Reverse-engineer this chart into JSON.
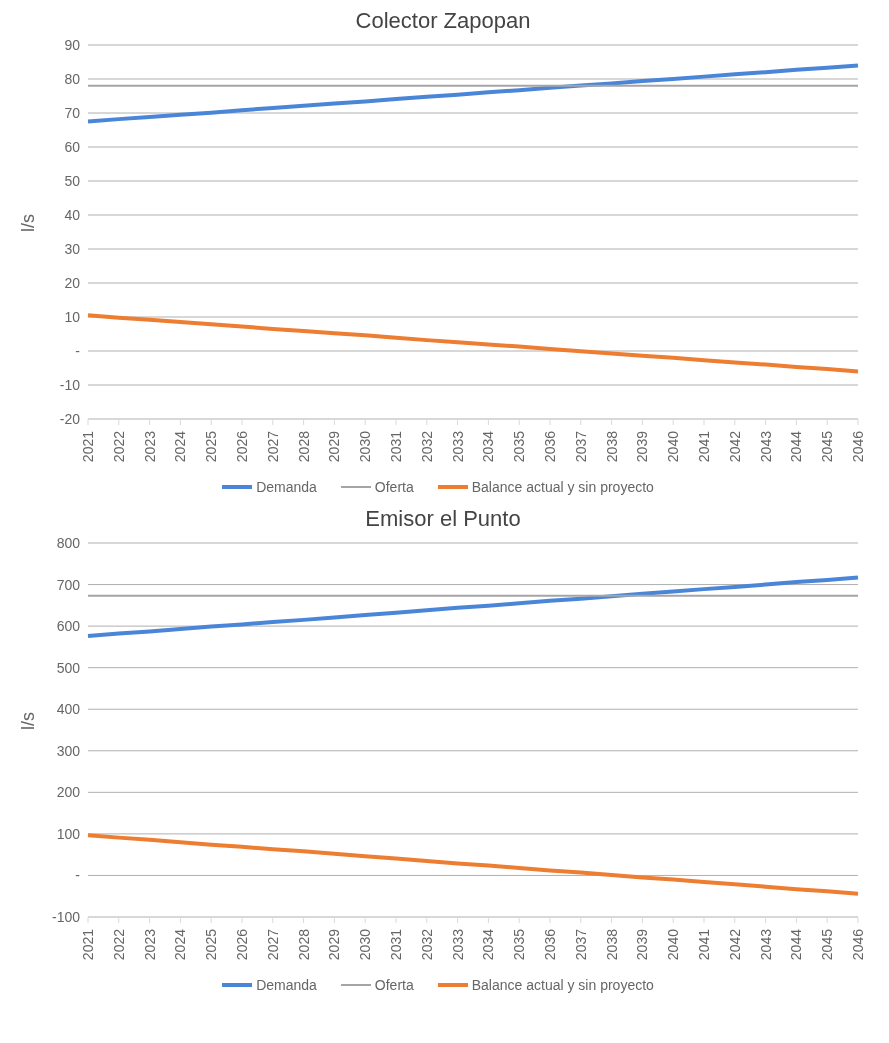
{
  "chart_data": [
    {
      "type": "line",
      "title": "Colector Zapopan",
      "ylabel": "l/s",
      "categories": [
        "2021",
        "2022",
        "2023",
        "2024",
        "2025",
        "2026",
        "2027",
        "2028",
        "2029",
        "2030",
        "2031",
        "2032",
        "2033",
        "2034",
        "2035",
        "2036",
        "2037",
        "2038",
        "2039",
        "2040",
        "2041",
        "2042",
        "2043",
        "2044",
        "2045",
        "2046"
      ],
      "series": [
        {
          "name": "Demanda",
          "color": "#4a86d8",
          "values": [
            67.5,
            68.2,
            68.8,
            69.5,
            70.1,
            70.8,
            71.5,
            72.1,
            72.8,
            73.4,
            74.1,
            74.8,
            75.4,
            76.1,
            76.7,
            77.4,
            78.1,
            78.7,
            79.4,
            80.0,
            80.7,
            81.4,
            82.0,
            82.7,
            83.3,
            84.0
          ]
        },
        {
          "name": "Oferta",
          "color": "#a5a5a5",
          "values": [
            78,
            78,
            78,
            78,
            78,
            78,
            78,
            78,
            78,
            78,
            78,
            78,
            78,
            78,
            78,
            78,
            78,
            78,
            78,
            78,
            78,
            78,
            78,
            78,
            78,
            78
          ]
        },
        {
          "name": "Balance actual y sin proyecto",
          "color": "#ed7d31",
          "values": [
            10.5,
            9.8,
            9.2,
            8.5,
            7.9,
            7.2,
            6.5,
            5.9,
            5.2,
            4.6,
            3.9,
            3.2,
            2.6,
            1.9,
            1.3,
            0.6,
            -0.1,
            -0.7,
            -1.4,
            -2.0,
            -2.7,
            -3.4,
            -4.0,
            -4.7,
            -5.3,
            -6.0
          ]
        }
      ],
      "ylim": [
        -20,
        90
      ],
      "yticks": [
        {
          "value": -20,
          "label": "-20"
        },
        {
          "value": -10,
          "label": "-10"
        },
        {
          "value": 0,
          "label": "-"
        },
        10,
        20,
        30,
        40,
        50,
        60,
        70,
        80,
        90
      ],
      "grid": "y",
      "legend": "bottom",
      "marker": "none",
      "line_style": "solid"
    },
    {
      "type": "line",
      "title": "Emisor el Punto",
      "ylabel": "l/s",
      "categories": [
        "2021",
        "2022",
        "2023",
        "2024",
        "2025",
        "2026",
        "2027",
        "2028",
        "2029",
        "2030",
        "2031",
        "2032",
        "2033",
        "2034",
        "2035",
        "2036",
        "2037",
        "2038",
        "2039",
        "2040",
        "2041",
        "2042",
        "2043",
        "2044",
        "2045",
        "2046"
      ],
      "series": [
        {
          "name": "Demanda",
          "color": "#4a86d8",
          "values": [
            576,
            582,
            587,
            593,
            599,
            604,
            610,
            615,
            621,
            627,
            632,
            638,
            644,
            649,
            655,
            661,
            666,
            672,
            678,
            683,
            689,
            694,
            700,
            706,
            711,
            717
          ]
        },
        {
          "name": "Oferta",
          "color": "#a5a5a5",
          "values": [
            673,
            673,
            673,
            673,
            673,
            673,
            673,
            673,
            673,
            673,
            673,
            673,
            673,
            673,
            673,
            673,
            673,
            673,
            673,
            673,
            673,
            673,
            673,
            673,
            673,
            673
          ]
        },
        {
          "name": "Balance actual y sin proyecto",
          "color": "#ed7d31",
          "values": [
            97,
            91,
            86,
            80,
            74,
            69,
            63,
            58,
            52,
            46,
            41,
            35,
            29,
            24,
            18,
            12,
            7,
            1,
            -5,
            -10,
            -16,
            -21,
            -27,
            -33,
            -38,
            -44
          ]
        }
      ],
      "ylim": [
        -100,
        800
      ],
      "yticks": [
        -100,
        {
          "value": 0,
          "label": "-"
        },
        100,
        200,
        300,
        400,
        500,
        600,
        700,
        800
      ],
      "grid": "y",
      "legend": "bottom",
      "marker": "none",
      "line_style": "solid"
    }
  ]
}
